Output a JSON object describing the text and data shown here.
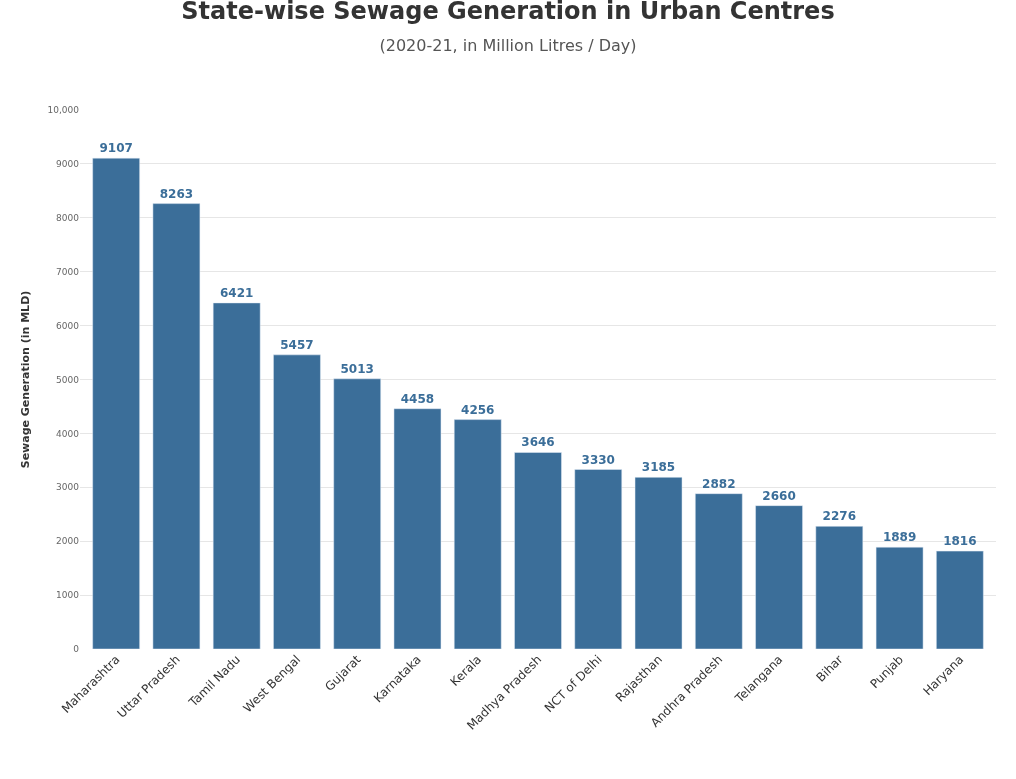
{
  "chart_data": {
    "type": "bar",
    "title": "State-wise Sewage Generation in Urban Centres",
    "subtitle": "(2020-21, in Million Litres / Day)",
    "ylabel": "Sewage Generation (in MLD)",
    "categories": [
      "Maharashtra",
      "Uttar Pradesh",
      "Tamil Nadu",
      "West Bengal",
      "Gujarat",
      "Karnataka",
      "Kerala",
      "Madhya Pradesh",
      "NCT of Delhi",
      "Rajasthan",
      "Andhra Pradesh",
      "Telangana",
      "Bihar",
      "Punjab",
      "Haryana"
    ],
    "values": [
      9107,
      8263,
      6421,
      5457,
      5013,
      4458,
      4256,
      3646,
      3330,
      3185,
      2882,
      2660,
      2276,
      1889,
      1816
    ],
    "color": "#3b6e99",
    "ylim": [
      0,
      10000
    ],
    "yticks": [
      0,
      1000,
      2000,
      3000,
      4000,
      5000,
      6000,
      7000,
      8000,
      9000,
      {
        "value": 10000,
        "label": "10,000"
      }
    ],
    "grid": "y",
    "data_labels": true
  }
}
